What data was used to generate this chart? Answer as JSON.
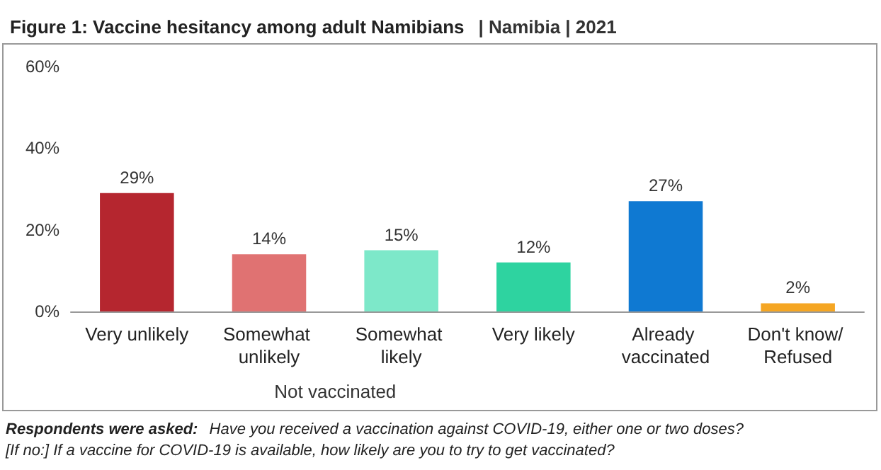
{
  "chart_data": {
    "type": "bar",
    "title": "Figure 1: Vaccine hesitancy among adult Namibians",
    "subtitle": "| Namibia | 2021",
    "categories": [
      "Very unlikely",
      "Somewhat unlikely",
      "Somewhat likely",
      "Very likely",
      "Already vaccinated",
      "Don't know/ Refused"
    ],
    "values": [
      29,
      14,
      15,
      12,
      27,
      2
    ],
    "colors": [
      "#b5262f",
      "#e07272",
      "#7de8c9",
      "#2ed3a0",
      "#0f79d2",
      "#f5a623"
    ],
    "value_labels": [
      "29%",
      "14%",
      "15%",
      "12%",
      "27%",
      "2%"
    ],
    "ylim": [
      0,
      60
    ],
    "yticks": [
      {
        "value": 0,
        "label": "0%"
      },
      {
        "value": 20,
        "label": "20%"
      },
      {
        "value": 40,
        "label": "40%"
      },
      {
        "value": 60,
        "label": "60%"
      }
    ],
    "grid": false,
    "annotations": [
      "Not vaccinated",
      "Respondents were asked: Have you received a vaccination against COVID-19, either one or two doses? [If no:] If a vaccine for COVID-19 is available, how likely are you to try to get vaccinated?"
    ]
  }
}
